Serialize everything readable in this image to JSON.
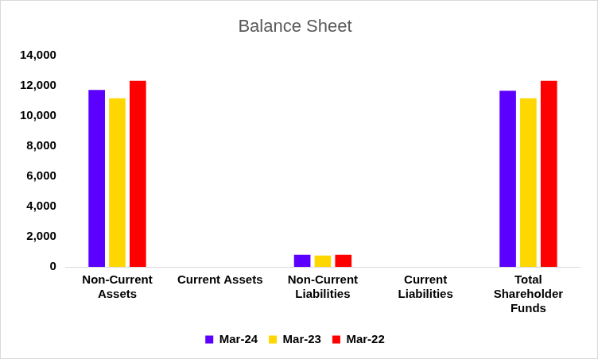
{
  "chart_data": {
    "type": "bar",
    "title": "Balance Sheet",
    "categories": [
      "Non-Current Assets",
      "Current Assets",
      "Non-Current Liabilities",
      "Current Liabilities",
      "Total Shareholder Funds"
    ],
    "series": [
      {
        "name": "Mar-24",
        "color": "#5b00ff",
        "values": [
          11700,
          0,
          800,
          0,
          11650
        ]
      },
      {
        "name": "Mar-23",
        "color": "#ffd700",
        "values": [
          11150,
          0,
          750,
          0,
          11150
        ]
      },
      {
        "name": "Mar-22",
        "color": "#ff0000",
        "values": [
          12300,
          0,
          800,
          0,
          12300
        ]
      }
    ],
    "ylim": [
      0,
      14000
    ],
    "yticks": [
      0,
      {
        "value": 2000,
        "label": "2,000"
      },
      {
        "value": 4000,
        "label": "4,000"
      },
      {
        "value": 6000,
        "label": "6,000"
      },
      {
        "value": 8000,
        "label": "8,000"
      },
      {
        "value": 10000,
        "label": "10,000"
      },
      {
        "value": 12000,
        "label": "12,000"
      },
      {
        "value": 14000,
        "label": "14,000"
      }
    ],
    "grid": false,
    "legend": "bottom"
  }
}
